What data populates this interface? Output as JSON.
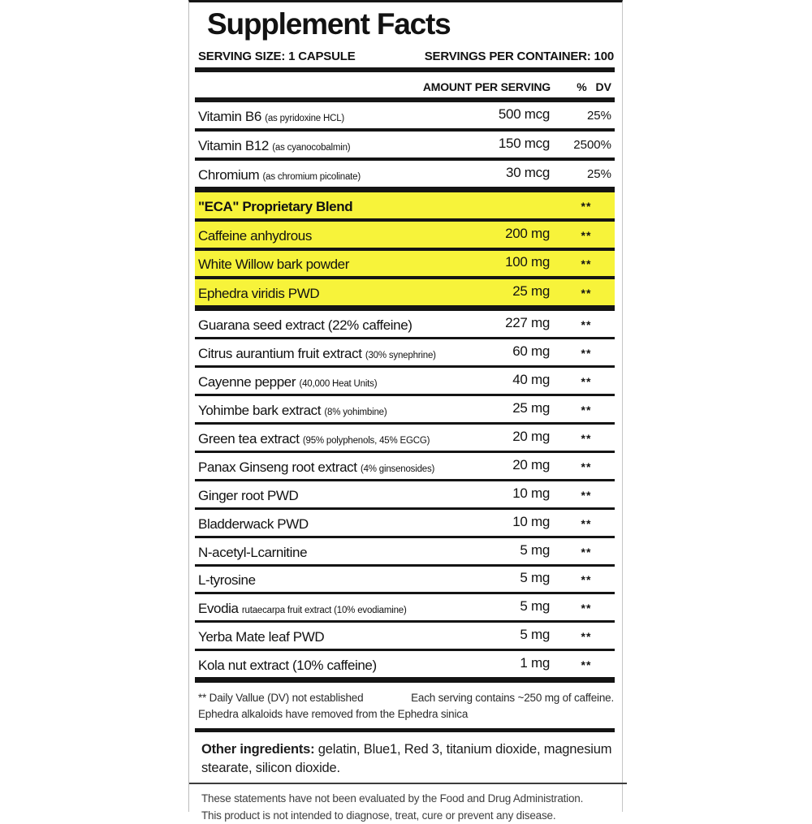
{
  "label": {
    "title": "Supplement Facts",
    "serving_size": "SERVING SIZE: 1 CAPSULE",
    "servings_per_container": "SERVINGS PER CONTAINER: 100",
    "col_amount": "AMOUNT PER SERVING",
    "col_dv": "% DV"
  },
  "colors": {
    "highlight": "#f7f33a",
    "rule": "#161616"
  },
  "rows": [
    {
      "name": "Vitamin B6 ",
      "detail": "(as pyridoxine HCL)",
      "amount": "500 mcg",
      "dv": "25%",
      "hl": false,
      "bold": false,
      "sep": "med"
    },
    {
      "name": "Vitamin B12 ",
      "detail": "(as cyanocobalmin)",
      "amount": "150 mcg",
      "dv": "2500%",
      "hl": false,
      "bold": false,
      "sep": "med"
    },
    {
      "name": "Chromium ",
      "detail": "(as chromium picolinate)",
      "amount": "30 mcg",
      "dv": "25%",
      "hl": false,
      "bold": false,
      "sep": "thick"
    },
    {
      "name": "\"ECA\" Proprietary Blend",
      "detail": "",
      "amount": "",
      "dv": "**",
      "hl": true,
      "bold": true,
      "sep": "med"
    },
    {
      "name": "Caffeine anhydrous",
      "detail": "",
      "amount": "200 mg",
      "dv": "**",
      "hl": true,
      "bold": false,
      "sep": "med"
    },
    {
      "name": "White Willow bark powder",
      "detail": "",
      "amount": "100 mg",
      "dv": "**",
      "hl": true,
      "bold": false,
      "sep": "med"
    },
    {
      "name": "Ephedra viridis PWD",
      "detail": "",
      "amount": "25 mg",
      "dv": "**",
      "hl": true,
      "bold": false,
      "sep": "thick"
    },
    {
      "name": "Guarana seed extract (22% caffeine)",
      "detail": "",
      "amount": "227 mg",
      "dv": "**",
      "hl": false,
      "bold": false,
      "sep": "thin"
    },
    {
      "name": "Citrus aurantium fruit extract ",
      "detail": "(30% synephrine)",
      "amount": "60 mg",
      "dv": "**",
      "hl": false,
      "bold": false,
      "sep": "thin"
    },
    {
      "name": "Cayenne pepper ",
      "detail": "(40,000 Heat Units)",
      "amount": "40 mg",
      "dv": "**",
      "hl": false,
      "bold": false,
      "sep": "thin"
    },
    {
      "name": "Yohimbe bark extract ",
      "detail": "(8% yohimbine)",
      "amount": "25 mg",
      "dv": "**",
      "hl": false,
      "bold": false,
      "sep": "thin"
    },
    {
      "name": "Green tea extract ",
      "detail": "(95% polyphenols, 45% EGCG)",
      "amount": "20 mg",
      "dv": "**",
      "hl": false,
      "bold": false,
      "sep": "thin"
    },
    {
      "name": "Panax Ginseng root extract ",
      "detail": "(4% ginsenosides)",
      "amount": "20 mg",
      "dv": "**",
      "hl": false,
      "bold": false,
      "sep": "thin"
    },
    {
      "name": "Ginger root PWD",
      "detail": "",
      "amount": "10 mg",
      "dv": "**",
      "hl": false,
      "bold": false,
      "sep": "thin"
    },
    {
      "name": "Bladderwack PWD",
      "detail": "",
      "amount": "10 mg",
      "dv": "**",
      "hl": false,
      "bold": false,
      "sep": "thin"
    },
    {
      "name": "N-acetyl-Lcarnitine",
      "detail": "",
      "amount": "5 mg",
      "dv": "**",
      "hl": false,
      "bold": false,
      "sep": "thin"
    },
    {
      "name": "L-tyrosine",
      "detail": "",
      "amount": "5 mg",
      "dv": "**",
      "hl": false,
      "bold": false,
      "sep": "thin"
    },
    {
      "name": "Evodia ",
      "detail": "rutaecarpa fruit extract (10% evodiamine)",
      "amount": "5 mg",
      "dv": "**",
      "hl": false,
      "bold": false,
      "sep": "thin"
    },
    {
      "name": "Yerba Mate leaf PWD",
      "detail": "",
      "amount": "5 mg",
      "dv": "**",
      "hl": false,
      "bold": false,
      "sep": "thin"
    },
    {
      "name": "Kola nut extract (10% caffeine)",
      "detail": "",
      "amount": "1 mg",
      "dv": "**",
      "hl": false,
      "bold": false,
      "sep": "thick"
    }
  ],
  "footnote": {
    "line1_left": "** Daily Vallue (DV) not established",
    "line1_right": "Each serving contains ~250 mg of caffeine.",
    "line2": "Ephedra alkaloids have removed from the Ephedra sinica"
  },
  "other_ingredients": {
    "lead": "Other ingredients:",
    "text": " gelatin, Blue1, Red 3, titanium dioxide, magnesium stearate, silicon dioxide."
  },
  "disclaimer": {
    "line1": "These statements have not been evaluated by the Food and Drug Administration.",
    "line2": "This product is not intended to diagnose, treat, cure or prevent any disease."
  }
}
